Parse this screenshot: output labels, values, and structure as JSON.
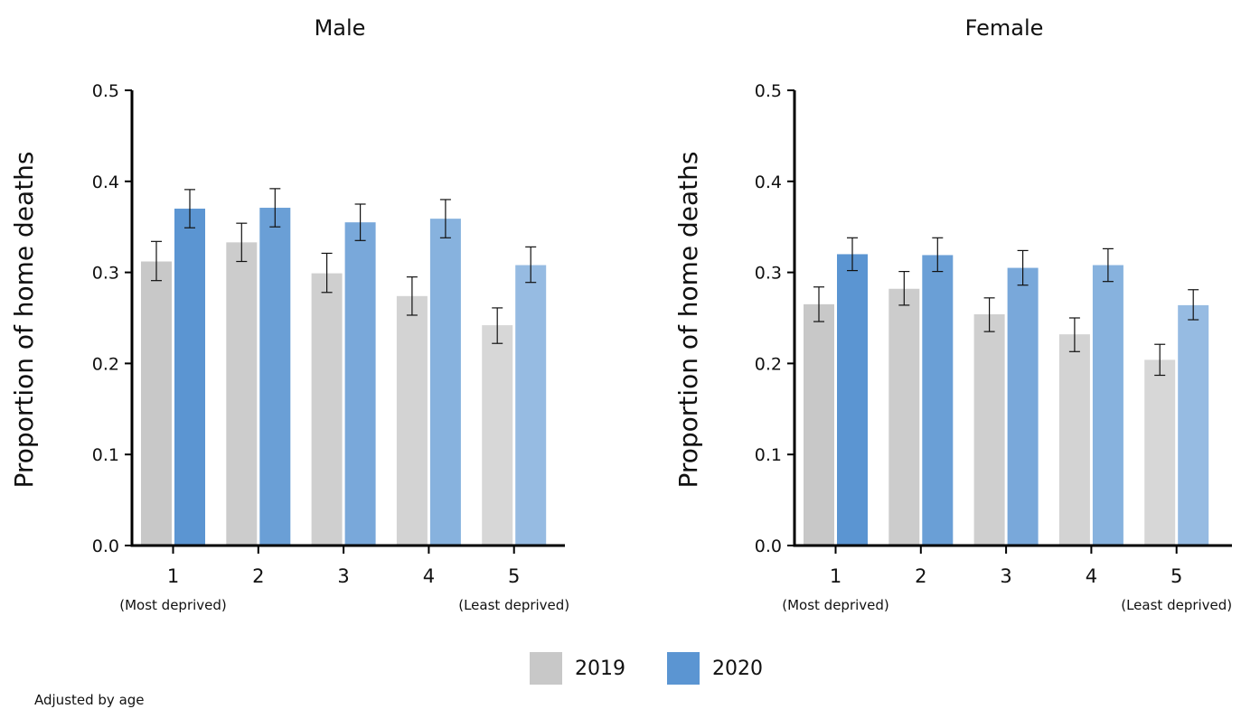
{
  "colors": {
    "y2019": "#c8c8c8",
    "y2020": "#5b95d2"
  },
  "legend": [
    {
      "label": "2019",
      "color": "#c8c8c8"
    },
    {
      "label": "2020",
      "color": "#5b95d2"
    }
  ],
  "footnote": "Adjusted by age",
  "chart_data": [
    {
      "type": "bar",
      "title": "Male",
      "ylabel": "Proportion of home deaths",
      "xlabel": "",
      "ylim": [
        0,
        0.5
      ],
      "yticks": [
        "0.0",
        "0.1",
        "0.2",
        "0.3",
        "0.4",
        "0.5"
      ],
      "categories": [
        "1",
        "2",
        "3",
        "4",
        "5"
      ],
      "category_notes": {
        "first": "(Most deprived)",
        "last": "(Least deprived)"
      },
      "series": [
        {
          "name": "2019",
          "values": [
            0.312,
            0.333,
            0.299,
            0.274,
            0.242
          ],
          "err_low": [
            0.291,
            0.312,
            0.278,
            0.253,
            0.222
          ],
          "err_high": [
            0.334,
            0.354,
            0.321,
            0.295,
            0.261
          ]
        },
        {
          "name": "2020",
          "values": [
            0.37,
            0.371,
            0.355,
            0.359,
            0.308
          ],
          "err_low": [
            0.349,
            0.35,
            0.335,
            0.338,
            0.289
          ],
          "err_high": [
            0.391,
            0.392,
            0.375,
            0.38,
            0.328
          ]
        }
      ]
    },
    {
      "type": "bar",
      "title": "Female",
      "ylabel": "Proportion of home deaths",
      "xlabel": "",
      "ylim": [
        0,
        0.5
      ],
      "yticks": [
        "0.0",
        "0.1",
        "0.2",
        "0.3",
        "0.4",
        "0.5"
      ],
      "categories": [
        "1",
        "2",
        "3",
        "4",
        "5"
      ],
      "category_notes": {
        "first": "(Most deprived)",
        "last": "(Least deprived)"
      },
      "series": [
        {
          "name": "2019",
          "values": [
            0.265,
            0.282,
            0.254,
            0.232,
            0.204
          ],
          "err_low": [
            0.246,
            0.264,
            0.235,
            0.213,
            0.187
          ],
          "err_high": [
            0.284,
            0.301,
            0.272,
            0.25,
            0.221
          ]
        },
        {
          "name": "2020",
          "values": [
            0.32,
            0.319,
            0.305,
            0.308,
            0.264
          ],
          "err_low": [
            0.302,
            0.301,
            0.286,
            0.29,
            0.248
          ],
          "err_high": [
            0.338,
            0.338,
            0.324,
            0.326,
            0.281
          ]
        }
      ]
    }
  ]
}
